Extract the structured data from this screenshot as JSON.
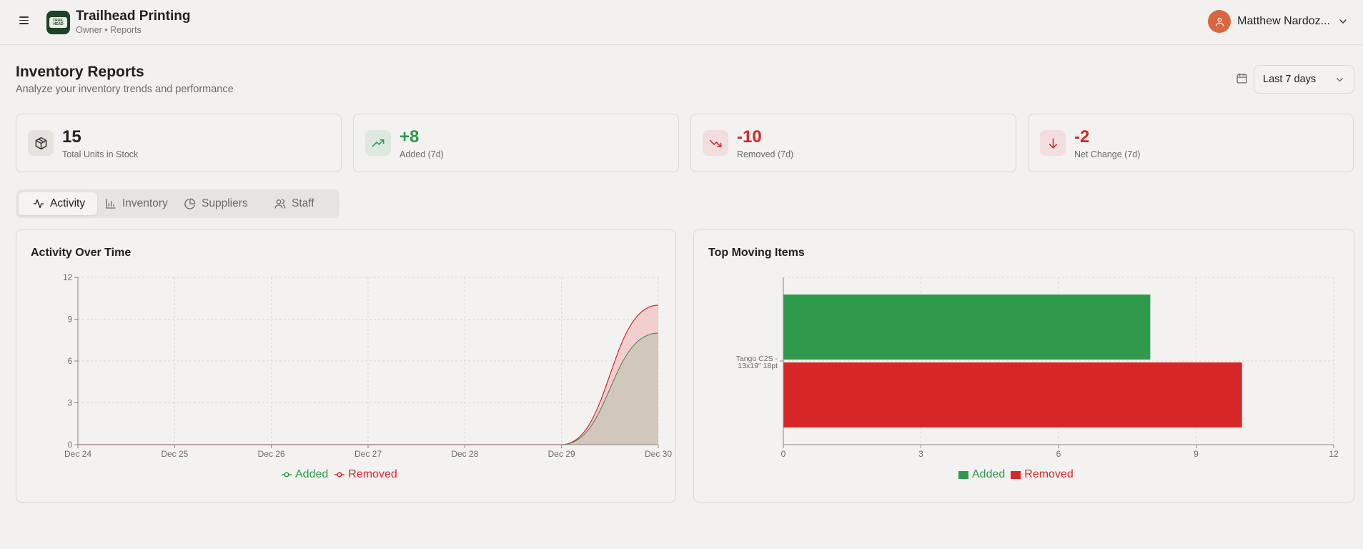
{
  "header": {
    "brand_name": "Trailhead Printing",
    "brand_sub": "Owner • Reports",
    "logo_text": "TRAIL HEAD",
    "user_name": "Matthew Nardoz..."
  },
  "page": {
    "title": "Inventory Reports",
    "subtitle": "Analyze your inventory trends and performance",
    "range": "Last 7 days"
  },
  "stats": [
    {
      "value": "15",
      "label": "Total Units in Stock",
      "icon": "package-icon",
      "color": "#231f1c"
    },
    {
      "value": "+8",
      "label": "Added (7d)",
      "icon": "trending-up-icon",
      "color": "#2f9a4b"
    },
    {
      "value": "-10",
      "label": "Removed (7d)",
      "icon": "trending-down-icon",
      "color": "#d62727"
    },
    {
      "value": "-2",
      "label": "Net Change (7d)",
      "icon": "arrow-down-icon",
      "color": "#d62727"
    }
  ],
  "tabs": [
    {
      "label": "Activity",
      "icon": "activity-icon",
      "active": true
    },
    {
      "label": "Inventory",
      "icon": "bar-chart-icon",
      "active": false
    },
    {
      "label": "Suppliers",
      "icon": "pie-chart-icon",
      "active": false
    },
    {
      "label": "Staff",
      "icon": "users-icon",
      "active": false
    }
  ],
  "colors": {
    "added": "#2f9a4b",
    "removed": "#d62727",
    "added_fill": "#cfc6ba",
    "removed_fill": "#f0c9c9"
  },
  "chart_data": [
    {
      "type": "area",
      "title": "Activity Over Time",
      "x": [
        "Dec 24",
        "Dec 25",
        "Dec 26",
        "Dec 27",
        "Dec 28",
        "Dec 29",
        "Dec 30"
      ],
      "series": [
        {
          "name": "Added",
          "values": [
            0,
            0,
            0,
            0,
            0,
            0,
            8
          ]
        },
        {
          "name": "Removed",
          "values": [
            0,
            0,
            0,
            0,
            0,
            0,
            10
          ]
        }
      ],
      "ylim": [
        0,
        12
      ],
      "yticks": [
        0,
        3,
        6,
        9,
        12
      ],
      "grid": true,
      "legend": "bottom"
    },
    {
      "type": "bar",
      "orientation": "horizontal",
      "title": "Top Moving Items",
      "categories": [
        "Tango C2S - 13x19\" 18pt"
      ],
      "category_lines": [
        "Tango C2S -",
        "13x19\" 18pt"
      ],
      "series": [
        {
          "name": "Added",
          "values": [
            8
          ]
        },
        {
          "name": "Removed",
          "values": [
            10
          ]
        }
      ],
      "xlim": [
        0,
        12
      ],
      "xticks": [
        0,
        3,
        6,
        9,
        12
      ],
      "grid": true,
      "legend": "bottom"
    }
  ]
}
